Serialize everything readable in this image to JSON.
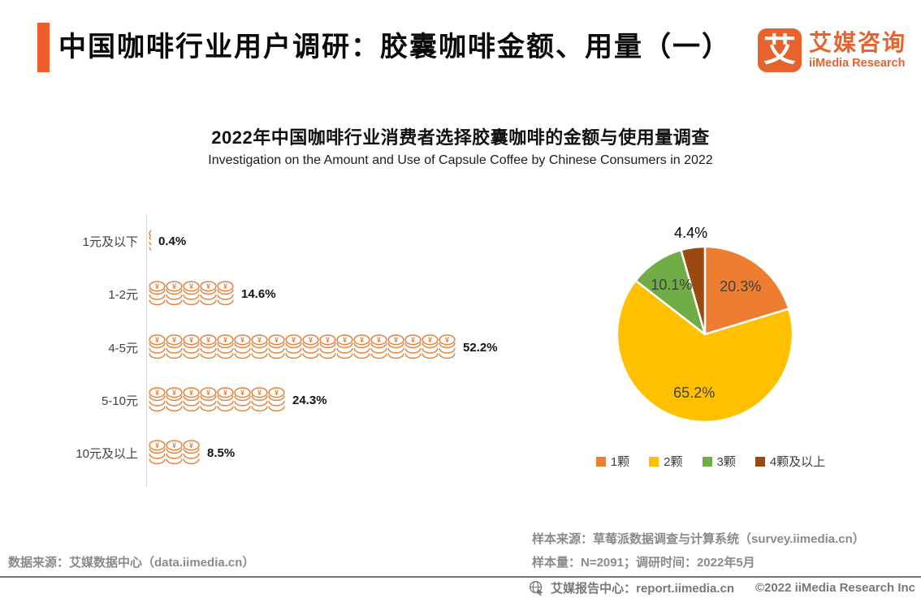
{
  "header": {
    "title": "中国咖啡行业用户调研：胶囊咖啡金额、用量（一）",
    "accent_color": "#F15C2B",
    "logo": {
      "icon": "iimedia-logo-icon",
      "glyph": "艾",
      "brand_cn": "艾媒咨询",
      "brand_en": "iiMedia Research",
      "brand_color": "#E7632E"
    }
  },
  "chart_header": {
    "title_cn": "2022年中国咖啡行业消费者选择胶囊咖啡的金额与使用量调查",
    "title_en": "Investigation on the Amount and Use of Capsule Coffee by Chinese Consumers in 2022"
  },
  "chart_data": [
    {
      "type": "bar",
      "variant": "pictograph",
      "icon": "coin-stack-icon",
      "icon_color": "#E5823C",
      "axis_color": "#D9D9D9",
      "categories": [
        "1元及以下",
        "1-2元",
        "4-5元",
        "5-10元",
        "10元及以上"
      ],
      "values": [
        0.4,
        14.6,
        52.2,
        24.3,
        8.5
      ],
      "value_labels": [
        "0.4%",
        "14.6%",
        "52.2%",
        "24.3%",
        "8.5%"
      ],
      "icon_counts": [
        0.16,
        5,
        18,
        8,
        3
      ],
      "unit": "percent",
      "xlim": [
        0,
        60
      ],
      "grid": false
    },
    {
      "type": "pie",
      "labels": [
        "1颗",
        "2颗",
        "3颗",
        "4颗及以上"
      ],
      "values": [
        20.3,
        65.2,
        10.1,
        4.4
      ],
      "value_labels": [
        "20.3%",
        "65.2%",
        "10.1%",
        "4.4%"
      ],
      "colors": [
        "#ED7D31",
        "#FFC000",
        "#70AD47",
        "#9A4A10"
      ],
      "label_positions": [
        "inside",
        "inside",
        "inside",
        "outside"
      ],
      "start_angle_deg": 0,
      "direction": "clockwise",
      "legend_position": "bottom"
    }
  ],
  "footnotes": {
    "data_source": "数据来源：艾媒数据中心（data.iimedia.cn）",
    "sample_source": "样本来源：草莓派数据调查与计算系统（survey.iimedia.cn）",
    "sample_size": "样本量：N=2091；调研时间：2022年5月"
  },
  "footer": {
    "icon": "globe-cursor-icon",
    "report_center": "艾媒报告中心：report.iimedia.cn",
    "copyright": "©2022  iiMedia Research Inc"
  }
}
